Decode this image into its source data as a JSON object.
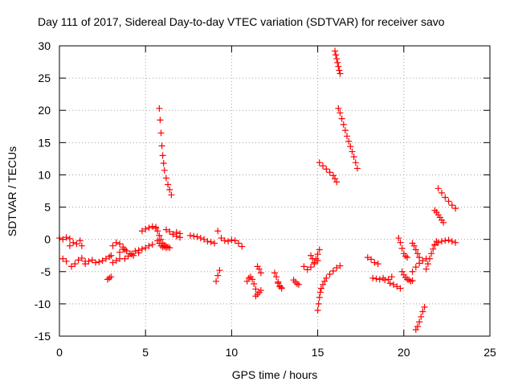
{
  "chart_data": {
    "type": "scatter",
    "title": "Day 111 of 2017, Sidereal Day-to-day VTEC variation (SDTVAR) for receiver savo",
    "xlabel": "GPS time / hours",
    "ylabel": "SDTVAR / TECUs",
    "xlim": [
      0,
      25
    ],
    "ylim": [
      -15,
      30
    ],
    "xticks": [
      0,
      5,
      10,
      15,
      20,
      25
    ],
    "yticks": [
      -15,
      -10,
      -5,
      0,
      5,
      10,
      15,
      20,
      25,
      30
    ],
    "xtick_labels": [
      "0",
      "5",
      "10",
      "15",
      "20",
      "25"
    ],
    "ytick_labels": [
      "-15",
      "-10",
      "-5",
      "0",
      "5",
      "10",
      "15",
      "20",
      "25",
      "30"
    ],
    "grid": true,
    "marker": "plus",
    "color": "#ff0000",
    "segments": [
      {
        "x": [
          0.0,
          0.2,
          0.4,
          0.6
        ],
        "y": [
          0.2,
          0.0,
          0.3,
          0.1
        ]
      },
      {
        "x": [
          0.2,
          0.4
        ],
        "y": [
          -3.0,
          -3.4
        ]
      },
      {
        "x": [
          0.6,
          0.8,
          1.0
        ],
        "y": [
          -1.0,
          -0.5,
          -0.7
        ]
      },
      {
        "x": [
          0.7,
          0.9,
          1.1,
          1.3,
          1.5
        ],
        "y": [
          -4.2,
          -3.8,
          -3.2,
          -2.9,
          -3.4
        ]
      },
      {
        "x": [
          1.2,
          1.3
        ],
        "y": [
          -0.2,
          -1.0
        ]
      },
      {
        "x": [
          1.5,
          1.7,
          1.9,
          2.1,
          2.3,
          2.5,
          2.7,
          2.9,
          3.0
        ],
        "y": [
          -3.8,
          -3.4,
          -3.2,
          -3.6,
          -3.5,
          -3.3,
          -3.0,
          -2.7,
          -2.5
        ]
      },
      {
        "x": [
          2.8,
          2.9,
          3.0
        ],
        "y": [
          -6.2,
          -6.0,
          -5.8
        ]
      },
      {
        "x": [
          3.1,
          3.3,
          3.5
        ],
        "y": [
          -3.6,
          -3.3,
          -3.0
        ]
      },
      {
        "x": [
          3.1,
          3.3,
          3.5,
          3.7,
          3.8
        ],
        "y": [
          -1.0,
          -0.5,
          -0.7,
          -1.2,
          -1.6
        ]
      },
      {
        "x": [
          3.5,
          3.7,
          3.9,
          4.1,
          4.3
        ],
        "y": [
          -2.0,
          -1.5,
          -1.8,
          -2.2,
          -2.5
        ]
      },
      {
        "x": [
          3.8,
          4.0,
          4.2,
          4.4,
          4.6
        ],
        "y": [
          -3.0,
          -2.6,
          -2.3,
          -1.8,
          -2.1
        ]
      },
      {
        "x": [
          4.6,
          4.8,
          5.0,
          5.2,
          5.4
        ],
        "y": [
          -1.7,
          -1.5,
          -1.3,
          -1.0,
          -0.8
        ]
      },
      {
        "x": [
          4.8,
          5.0,
          5.2,
          5.4,
          5.6
        ],
        "y": [
          1.3,
          1.6,
          1.8,
          2.0,
          1.9
        ]
      },
      {
        "x": [
          5.6,
          5.7,
          5.8,
          5.9,
          6.0,
          6.1,
          6.2,
          6.3,
          6.4
        ],
        "y": [
          1.7,
          1.3,
          0.6,
          0.0,
          -0.6,
          -0.9,
          -1.1,
          -1.2,
          -1.3
        ]
      },
      {
        "x": [
          5.7,
          5.8,
          5.9,
          6.0,
          6.1,
          6.2
        ],
        "y": [
          -0.2,
          -0.6,
          -1.0,
          -1.2,
          -1.1,
          -1.3
        ]
      },
      {
        "x": [
          5.8,
          5.85,
          5.9,
          5.95,
          6.0,
          6.05,
          6.1,
          6.2,
          6.3,
          6.4,
          6.5
        ],
        "y": [
          20.3,
          18.5,
          16.5,
          14.5,
          13.0,
          11.8,
          10.7,
          9.5,
          8.5,
          7.7,
          6.9
        ]
      },
      {
        "x": [
          6.2,
          6.4,
          6.6,
          6.8,
          7.0
        ],
        "y": [
          1.5,
          1.2,
          0.8,
          0.5,
          0.3
        ]
      },
      {
        "x": [
          6.6,
          6.8,
          7.0
        ],
        "y": [
          0.8,
          1.1,
          0.9
        ]
      },
      {
        "x": [
          7.6,
          7.8,
          8.0,
          8.2,
          8.4,
          8.6,
          8.8,
          9.0
        ],
        "y": [
          0.6,
          0.5,
          0.4,
          0.2,
          0.0,
          -0.3,
          -0.4,
          -0.6
        ]
      },
      {
        "x": [
          9.1,
          9.2,
          9.3
        ],
        "y": [
          -6.5,
          -5.6,
          -4.8
        ]
      },
      {
        "x": [
          9.2,
          9.4,
          9.6,
          9.8,
          10.0,
          10.2,
          10.4,
          10.6
        ],
        "y": [
          1.3,
          0.2,
          -0.2,
          -0.3,
          -0.1,
          -0.2,
          -0.6,
          -1.1
        ]
      },
      {
        "x": [
          10.9,
          11.0,
          11.1,
          11.2,
          11.3,
          11.4
        ],
        "y": [
          -6.5,
          -6.0,
          -5.8,
          -6.2,
          -6.9,
          -7.7
        ]
      },
      {
        "x": [
          11.4,
          11.5,
          11.6,
          11.7
        ],
        "y": [
          -8.8,
          -8.5,
          -8.2,
          -7.9
        ]
      },
      {
        "x": [
          11.5,
          11.6,
          11.7
        ],
        "y": [
          -4.2,
          -4.6,
          -5.2
        ]
      },
      {
        "x": [
          12.5,
          12.6,
          12.7,
          12.8,
          12.9
        ],
        "y": [
          -5.2,
          -5.8,
          -6.6,
          -7.3,
          -7.6
        ]
      },
      {
        "x": [
          12.7,
          12.8,
          12.9
        ],
        "y": [
          -6.8,
          -7.2,
          -7.5
        ]
      },
      {
        "x": [
          13.6,
          13.7,
          13.8,
          13.9
        ],
        "y": [
          -6.3,
          -6.6,
          -6.9,
          -7.0
        ]
      },
      {
        "x": [
          14.2,
          14.4,
          14.6,
          14.8,
          15.0
        ],
        "y": [
          -4.2,
          -4.7,
          -4.3,
          -3.8,
          -3.3
        ]
      },
      {
        "x": [
          14.6,
          14.7,
          14.8,
          14.9,
          15.0,
          15.1
        ],
        "y": [
          -2.5,
          -3.0,
          -3.6,
          -3.0,
          -2.3,
          -1.6
        ]
      },
      {
        "x": [
          15.0,
          15.05,
          15.1,
          15.15,
          15.2,
          15.3,
          15.4,
          15.5,
          15.7,
          15.9,
          16.1,
          16.3
        ],
        "y": [
          -11.0,
          -10.0,
          -9.0,
          -8.2,
          -7.6,
          -7.0,
          -6.5,
          -6.0,
          -5.4,
          -4.9,
          -4.4,
          -4.1
        ]
      },
      {
        "x": [
          15.1,
          15.3,
          15.5,
          15.7,
          15.9,
          16.0,
          16.1
        ],
        "y": [
          11.9,
          11.4,
          10.9,
          10.4,
          9.9,
          9.4,
          8.9
        ]
      },
      {
        "x": [
          16.0,
          16.05,
          16.1,
          16.15,
          16.2,
          16.25,
          16.3
        ],
        "y": [
          29.2,
          28.6,
          28.0,
          27.4,
          26.8,
          26.2,
          25.7
        ]
      },
      {
        "x": [
          16.2,
          16.3,
          16.4,
          16.5,
          16.6,
          16.7,
          16.8,
          16.9,
          17.0,
          17.1,
          17.2,
          17.3
        ],
        "y": [
          20.3,
          19.6,
          18.7,
          17.8,
          16.9,
          16.0,
          15.2,
          14.4,
          13.6,
          12.8,
          11.9,
          11.0
        ]
      },
      {
        "x": [
          17.9,
          18.1,
          18.3,
          18.5
        ],
        "y": [
          -2.8,
          -3.1,
          -3.6,
          -3.8
        ]
      },
      {
        "x": [
          18.2,
          18.4,
          18.6,
          18.8
        ],
        "y": [
          -6.0,
          -6.1,
          -6.2,
          -6.0
        ]
      },
      {
        "x": [
          18.9,
          19.1,
          19.3
        ],
        "y": [
          -6.3,
          -6.2,
          -5.8
        ]
      },
      {
        "x": [
          19.2,
          19.4,
          19.6,
          19.8
        ],
        "y": [
          -6.8,
          -7.0,
          -7.3,
          -7.6
        ]
      },
      {
        "x": [
          19.7,
          19.8,
          19.9,
          20.0,
          20.1,
          20.2
        ],
        "y": [
          0.2,
          -0.5,
          -1.4,
          -2.2,
          -2.6,
          -2.8
        ]
      },
      {
        "x": [
          19.9,
          20.0,
          20.1,
          20.2,
          20.3,
          20.4,
          20.5
        ],
        "y": [
          -5.0,
          -5.5,
          -5.9,
          -6.2,
          -6.3,
          -6.5,
          -6.4
        ]
      },
      {
        "x": [
          20.5,
          20.6,
          20.7,
          20.8,
          20.9
        ],
        "y": [
          -0.6,
          -1.0,
          -1.6,
          -2.2,
          -2.8
        ]
      },
      {
        "x": [
          20.5,
          20.7,
          20.9,
          21.1,
          21.3
        ],
        "y": [
          -5.0,
          -4.3,
          -3.7,
          -3.3,
          -3.0
        ]
      },
      {
        "x": [
          20.7,
          20.8,
          20.9,
          21.0,
          21.1,
          21.2
        ],
        "y": [
          -14.0,
          -13.5,
          -12.8,
          -12.0,
          -11.2,
          -10.5
        ]
      },
      {
        "x": [
          21.3,
          21.4,
          21.5,
          21.6,
          21.7,
          21.8,
          21.9
        ],
        "y": [
          -4.6,
          -3.8,
          -3.0,
          -2.2,
          -1.5,
          -0.8,
          -0.3
        ]
      },
      {
        "x": [
          21.8,
          21.9,
          22.0,
          22.1,
          22.2,
          22.3
        ],
        "y": [
          4.5,
          4.2,
          3.8,
          3.4,
          3.0,
          2.6
        ]
      },
      {
        "x": [
          22.0,
          22.2,
          22.4,
          22.6,
          22.8,
          23.0
        ],
        "y": [
          7.9,
          7.2,
          6.5,
          5.9,
          5.3,
          4.8
        ]
      },
      {
        "x": [
          21.8,
          22.0,
          22.2,
          22.4,
          22.6,
          22.8,
          23.0
        ],
        "y": [
          -0.9,
          -0.5,
          -0.3,
          -0.2,
          -0.1,
          -0.3,
          -0.5
        ]
      }
    ]
  }
}
